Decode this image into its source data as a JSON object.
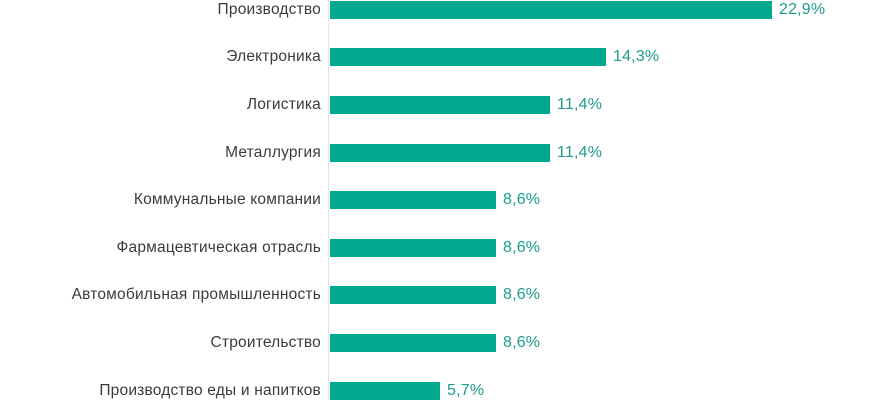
{
  "chart_data": {
    "type": "bar",
    "orientation": "horizontal",
    "title": "",
    "xlabel": "",
    "ylabel": "",
    "xlim": [
      0,
      25
    ],
    "grid": false,
    "legend": null,
    "categories": [
      "Производство",
      "Электроника",
      "Логистика",
      "Металлургия",
      "Коммунальные компании",
      "Фармацевтическая отрасль",
      "Автомобильная промышленность",
      "Строительство",
      "Производство еды и напитков"
    ],
    "values": [
      22.9,
      14.3,
      11.4,
      11.4,
      8.6,
      8.6,
      8.6,
      8.6,
      5.7
    ],
    "value_labels": [
      "22,9%",
      "14,3%",
      "11,4%",
      "11,4%",
      "8,6%",
      "8,6%",
      "8,6%",
      "8,6%",
      "5,7%"
    ],
    "colors": {
      "bar": "#00a88e",
      "value_label": "#1d9c8c",
      "category_label": "#3b3b3b",
      "axis_line": "#e7e7e7"
    },
    "pixels_per_percent": 19.3
  }
}
